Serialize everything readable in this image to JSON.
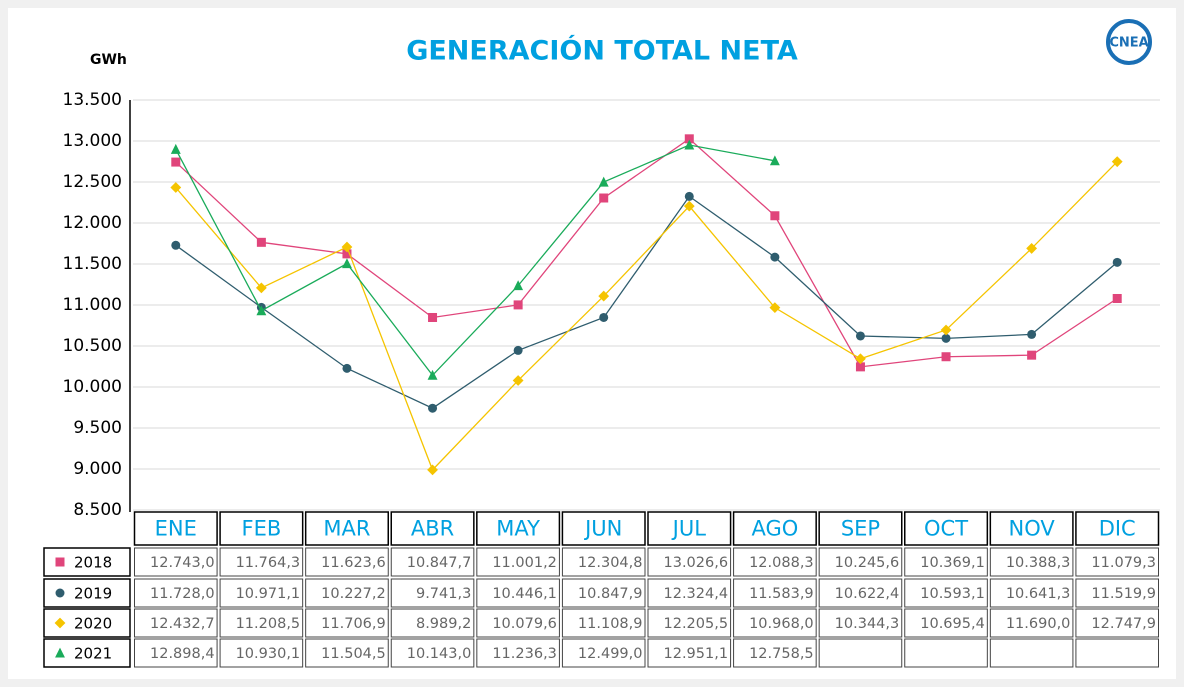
{
  "chart_data": {
    "type": "line",
    "title": "GENERACIÓN TOTAL NETA",
    "y_label": "GWh",
    "logo": "CNEA",
    "categories": [
      "ENE",
      "FEB",
      "MAR",
      "ABR",
      "MAY",
      "JUN",
      "JUL",
      "AGO",
      "SEP",
      "OCT",
      "NOV",
      "DIC"
    ],
    "series": [
      {
        "name": "2018",
        "color": "#e0457b",
        "marker": "square",
        "values": [
          12743.0,
          11764.3,
          11623.6,
          10847.7,
          11001.2,
          12304.8,
          13026.6,
          12088.3,
          10245.6,
          10369.1,
          10388.3,
          11079.3
        ],
        "value_labels": [
          "12.743,0",
          "11.764,3",
          "11.623,6",
          "10.847,7",
          "11.001,2",
          "12.304,8",
          "13.026,6",
          "12.088,3",
          "10.245,6",
          "10.369,1",
          "10.388,3",
          "11.079,3"
        ]
      },
      {
        "name": "2019",
        "color": "#2f5d6e",
        "marker": "circle",
        "values": [
          11728.0,
          10971.1,
          10227.2,
          9741.3,
          10446.1,
          10847.9,
          12324.4,
          11583.9,
          10622.4,
          10593.1,
          10641.3,
          11519.9
        ],
        "value_labels": [
          "11.728,0",
          "10.971,1",
          "10.227,2",
          "9.741,3",
          "10.446,1",
          "10.847,9",
          "12.324,4",
          "11.583,9",
          "10.622,4",
          "10.593,1",
          "10.641,3",
          "11.519,9"
        ]
      },
      {
        "name": "2020",
        "color": "#f5c400",
        "marker": "diamond",
        "values": [
          12432.7,
          11208.5,
          11706.9,
          8989.2,
          10079.6,
          11108.9,
          12205.5,
          10968.0,
          10344.3,
          10695.4,
          11690.0,
          12747.9
        ],
        "value_labels": [
          "12.432,7",
          "11.208,5",
          "11.706,9",
          "8.989,2",
          "10.079,6",
          "11.108,9",
          "12.205,5",
          "10.968,0",
          "10.344,3",
          "10.695,4",
          "11.690,0",
          "12.747,9"
        ]
      },
      {
        "name": "2021",
        "color": "#1aab5a",
        "marker": "triangle",
        "values": [
          12898.4,
          10930.1,
          11504.5,
          10143.0,
          11236.3,
          12499.0,
          12951.1,
          12758.5,
          null,
          null,
          null,
          null
        ],
        "value_labels": [
          "12.898,4",
          "10.930,1",
          "11.504,5",
          "10.143,0",
          "11.236,3",
          "12.499,0",
          "12.951,1",
          "12.758,5",
          null,
          null,
          null,
          null
        ]
      }
    ],
    "ylim": [
      8500,
      13500
    ],
    "yticks": [
      {
        "value": 8500,
        "label": "8.500"
      },
      {
        "value": 9000,
        "label": "9.000"
      },
      {
        "value": 9500,
        "label": "9.500"
      },
      {
        "value": 10000,
        "label": "10.000"
      },
      {
        "value": 10500,
        "label": "10.500"
      },
      {
        "value": 11000,
        "label": "11.000"
      },
      {
        "value": 11500,
        "label": "11.500"
      },
      {
        "value": 12000,
        "label": "12.000"
      },
      {
        "value": 12500,
        "label": "12.500"
      },
      {
        "value": 13000,
        "label": "13.000"
      },
      {
        "value": 13500,
        "label": "13.500"
      }
    ],
    "grid": true
  }
}
